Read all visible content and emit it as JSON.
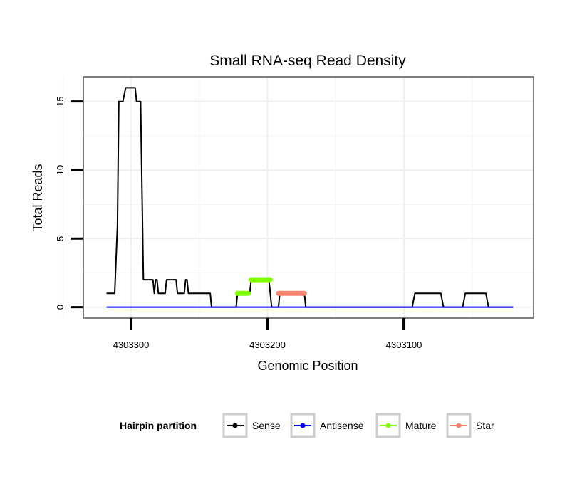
{
  "chart_data": {
    "type": "line",
    "title": "Small RNA-seq Read Density",
    "xlabel": "Genomic Position",
    "ylabel": "Total Reads",
    "xlim": [
      4303335,
      4303005
    ],
    "ylim": [
      -0.8,
      16.8
    ],
    "x_reversed": true,
    "grid": true,
    "x_ticks": [
      {
        "value": 4303300,
        "label": "4303300"
      },
      {
        "value": 4303200,
        "label": "4303200"
      },
      {
        "value": 4303100,
        "label": "4303100"
      }
    ],
    "y_ticks": [
      {
        "value": 0,
        "label": "0"
      },
      {
        "value": 5,
        "label": "5"
      },
      {
        "value": 10,
        "label": "10"
      },
      {
        "value": 15,
        "label": "15"
      }
    ],
    "legend": {
      "title": "Hairpin partition",
      "position": "bottom",
      "entries": [
        {
          "key": "sense",
          "label": "Sense",
          "color": "#000000"
        },
        {
          "key": "antisense",
          "label": "Antisense",
          "color": "#0000ff"
        },
        {
          "key": "mature",
          "label": "Mature",
          "color": "#7fff00"
        },
        {
          "key": "star",
          "label": "Star",
          "color": "#fa8072"
        }
      ]
    },
    "series": [
      {
        "name": "Sense",
        "color": "#000000",
        "points": [
          [
            4303318,
            1
          ],
          [
            4303312,
            1
          ],
          [
            4303310,
            6
          ],
          [
            4303309,
            15
          ],
          [
            4303306,
            15
          ],
          [
            4303304,
            16
          ],
          [
            4303297,
            16
          ],
          [
            4303296,
            15
          ],
          [
            4303293,
            15
          ],
          [
            4303291,
            2
          ],
          [
            4303284,
            2
          ],
          [
            4303283,
            1
          ],
          [
            4303282,
            2
          ],
          [
            4303281,
            2
          ],
          [
            4303280,
            1
          ],
          [
            4303275,
            1
          ],
          [
            4303274,
            2
          ],
          [
            4303267,
            2
          ],
          [
            4303266,
            1
          ],
          [
            4303261,
            1
          ],
          [
            4303260,
            2
          ],
          [
            4303259,
            2
          ],
          [
            4303258,
            1
          ],
          [
            4303242,
            1
          ],
          [
            4303241,
            0
          ],
          [
            4303223,
            0
          ],
          [
            4303222,
            1
          ],
          [
            4303213,
            1
          ],
          [
            4303212,
            2
          ],
          [
            4303199,
            2
          ],
          [
            4303197,
            0
          ],
          [
            4303192,
            0
          ],
          [
            4303191,
            1
          ],
          [
            4303173,
            1
          ],
          [
            4303172,
            0
          ],
          [
            4303094,
            0
          ],
          [
            4303092,
            1
          ],
          [
            4303073,
            1
          ],
          [
            4303071,
            0
          ],
          [
            4303057,
            0
          ],
          [
            4303055,
            1
          ],
          [
            4303040,
            1
          ],
          [
            4303038,
            0
          ],
          [
            4303020,
            0
          ]
        ]
      },
      {
        "name": "Antisense",
        "color": "#0000ff",
        "points": [
          [
            4303318,
            0
          ],
          [
            4303020,
            0
          ]
        ]
      },
      {
        "name": "Mature",
        "color": "#7fff00",
        "segments": [
          [
            [
              4303222,
              1
            ],
            [
              4303214,
              1
            ]
          ],
          [
            [
              4303212,
              2
            ],
            [
              4303198,
              2
            ]
          ]
        ]
      },
      {
        "name": "Star",
        "color": "#fa8072",
        "segments": [
          [
            [
              4303192,
              1
            ],
            [
              4303173,
              1
            ]
          ]
        ]
      }
    ]
  }
}
